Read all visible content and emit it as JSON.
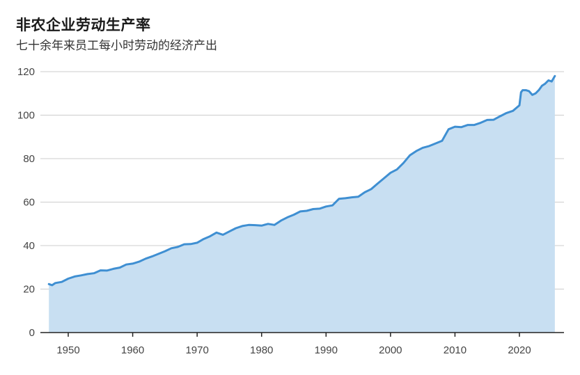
{
  "header": {
    "title": "非农企业劳动生产率",
    "subtitle": "七十余年来员工每小时劳动的经济产出"
  },
  "colors": {
    "line": "#3f8fd2",
    "area": "#c8dff2",
    "grid": "#cccccc",
    "axis": "#222222",
    "tick_text": "#444444"
  },
  "chart_data": {
    "type": "area",
    "title": "非农企业劳动生产率",
    "subtitle": "七十余年来员工每小时劳动的经济产出",
    "xlabel": "",
    "ylabel": "",
    "ylim": [
      0,
      120
    ],
    "xlim": [
      1947,
      2025.5
    ],
    "grid": true,
    "legend": null,
    "yticks": [
      0,
      20,
      40,
      60,
      80,
      100,
      120
    ],
    "xticks": [
      1950,
      1960,
      1970,
      1980,
      1990,
      2000,
      2010,
      2020
    ],
    "series": [
      {
        "name": "非农企业劳动生产率",
        "x": [
          1947,
          1947.5,
          1948,
          1949,
          1950,
          1951,
          1952,
          1953,
          1954,
          1955,
          1956,
          1957,
          1958,
          1959,
          1960,
          1961,
          1962,
          1963,
          1964,
          1965,
          1966,
          1967,
          1968,
          1969,
          1970,
          1971,
          1972,
          1973,
          1974,
          1975,
          1976,
          1977,
          1978,
          1979,
          1980,
          1981,
          1982,
          1983,
          1984,
          1985,
          1986,
          1987,
          1988,
          1989,
          1990,
          1991,
          1992,
          1993,
          1994,
          1995,
          1996,
          1997,
          1998,
          1999,
          2000,
          2001,
          2002,
          2003,
          2004,
          2005,
          2006,
          2007,
          2008,
          2009,
          2010,
          2011,
          2012,
          2013,
          2014,
          2015,
          2016,
          2017,
          2018,
          2019,
          2020,
          2020.25,
          2020.5,
          2021,
          2021.5,
          2022,
          2022.5,
          2023,
          2023.5,
          2024,
          2024.5,
          2025,
          2025.5
        ],
        "values": [
          22.3,
          21.8,
          22.8,
          23.3,
          24.8,
          25.8,
          26.3,
          26.9,
          27.3,
          28.6,
          28.5,
          29.3,
          29.9,
          31.3,
          31.7,
          32.6,
          34.0,
          35.0,
          36.2,
          37.4,
          38.8,
          39.4,
          40.6,
          40.7,
          41.3,
          43.0,
          44.3,
          46.0,
          45.0,
          46.5,
          48.0,
          49.0,
          49.5,
          49.4,
          49.2,
          50.0,
          49.5,
          51.5,
          53.0,
          54.2,
          55.7,
          56.0,
          56.8,
          57.0,
          58.0,
          58.5,
          61.5,
          61.8,
          62.2,
          62.5,
          64.5,
          66.0,
          68.5,
          71.0,
          73.5,
          75.0,
          78.0,
          81.5,
          83.5,
          85.0,
          85.8,
          87.0,
          88.2,
          93.5,
          94.7,
          94.5,
          95.5,
          95.5,
          96.5,
          97.8,
          97.9,
          99.5,
          101.0,
          102.0,
          104.5,
          110.5,
          111.5,
          111.5,
          111.0,
          109.3,
          110.0,
          111.5,
          113.5,
          114.5,
          116.0,
          115.5,
          118.0
        ]
      }
    ]
  }
}
